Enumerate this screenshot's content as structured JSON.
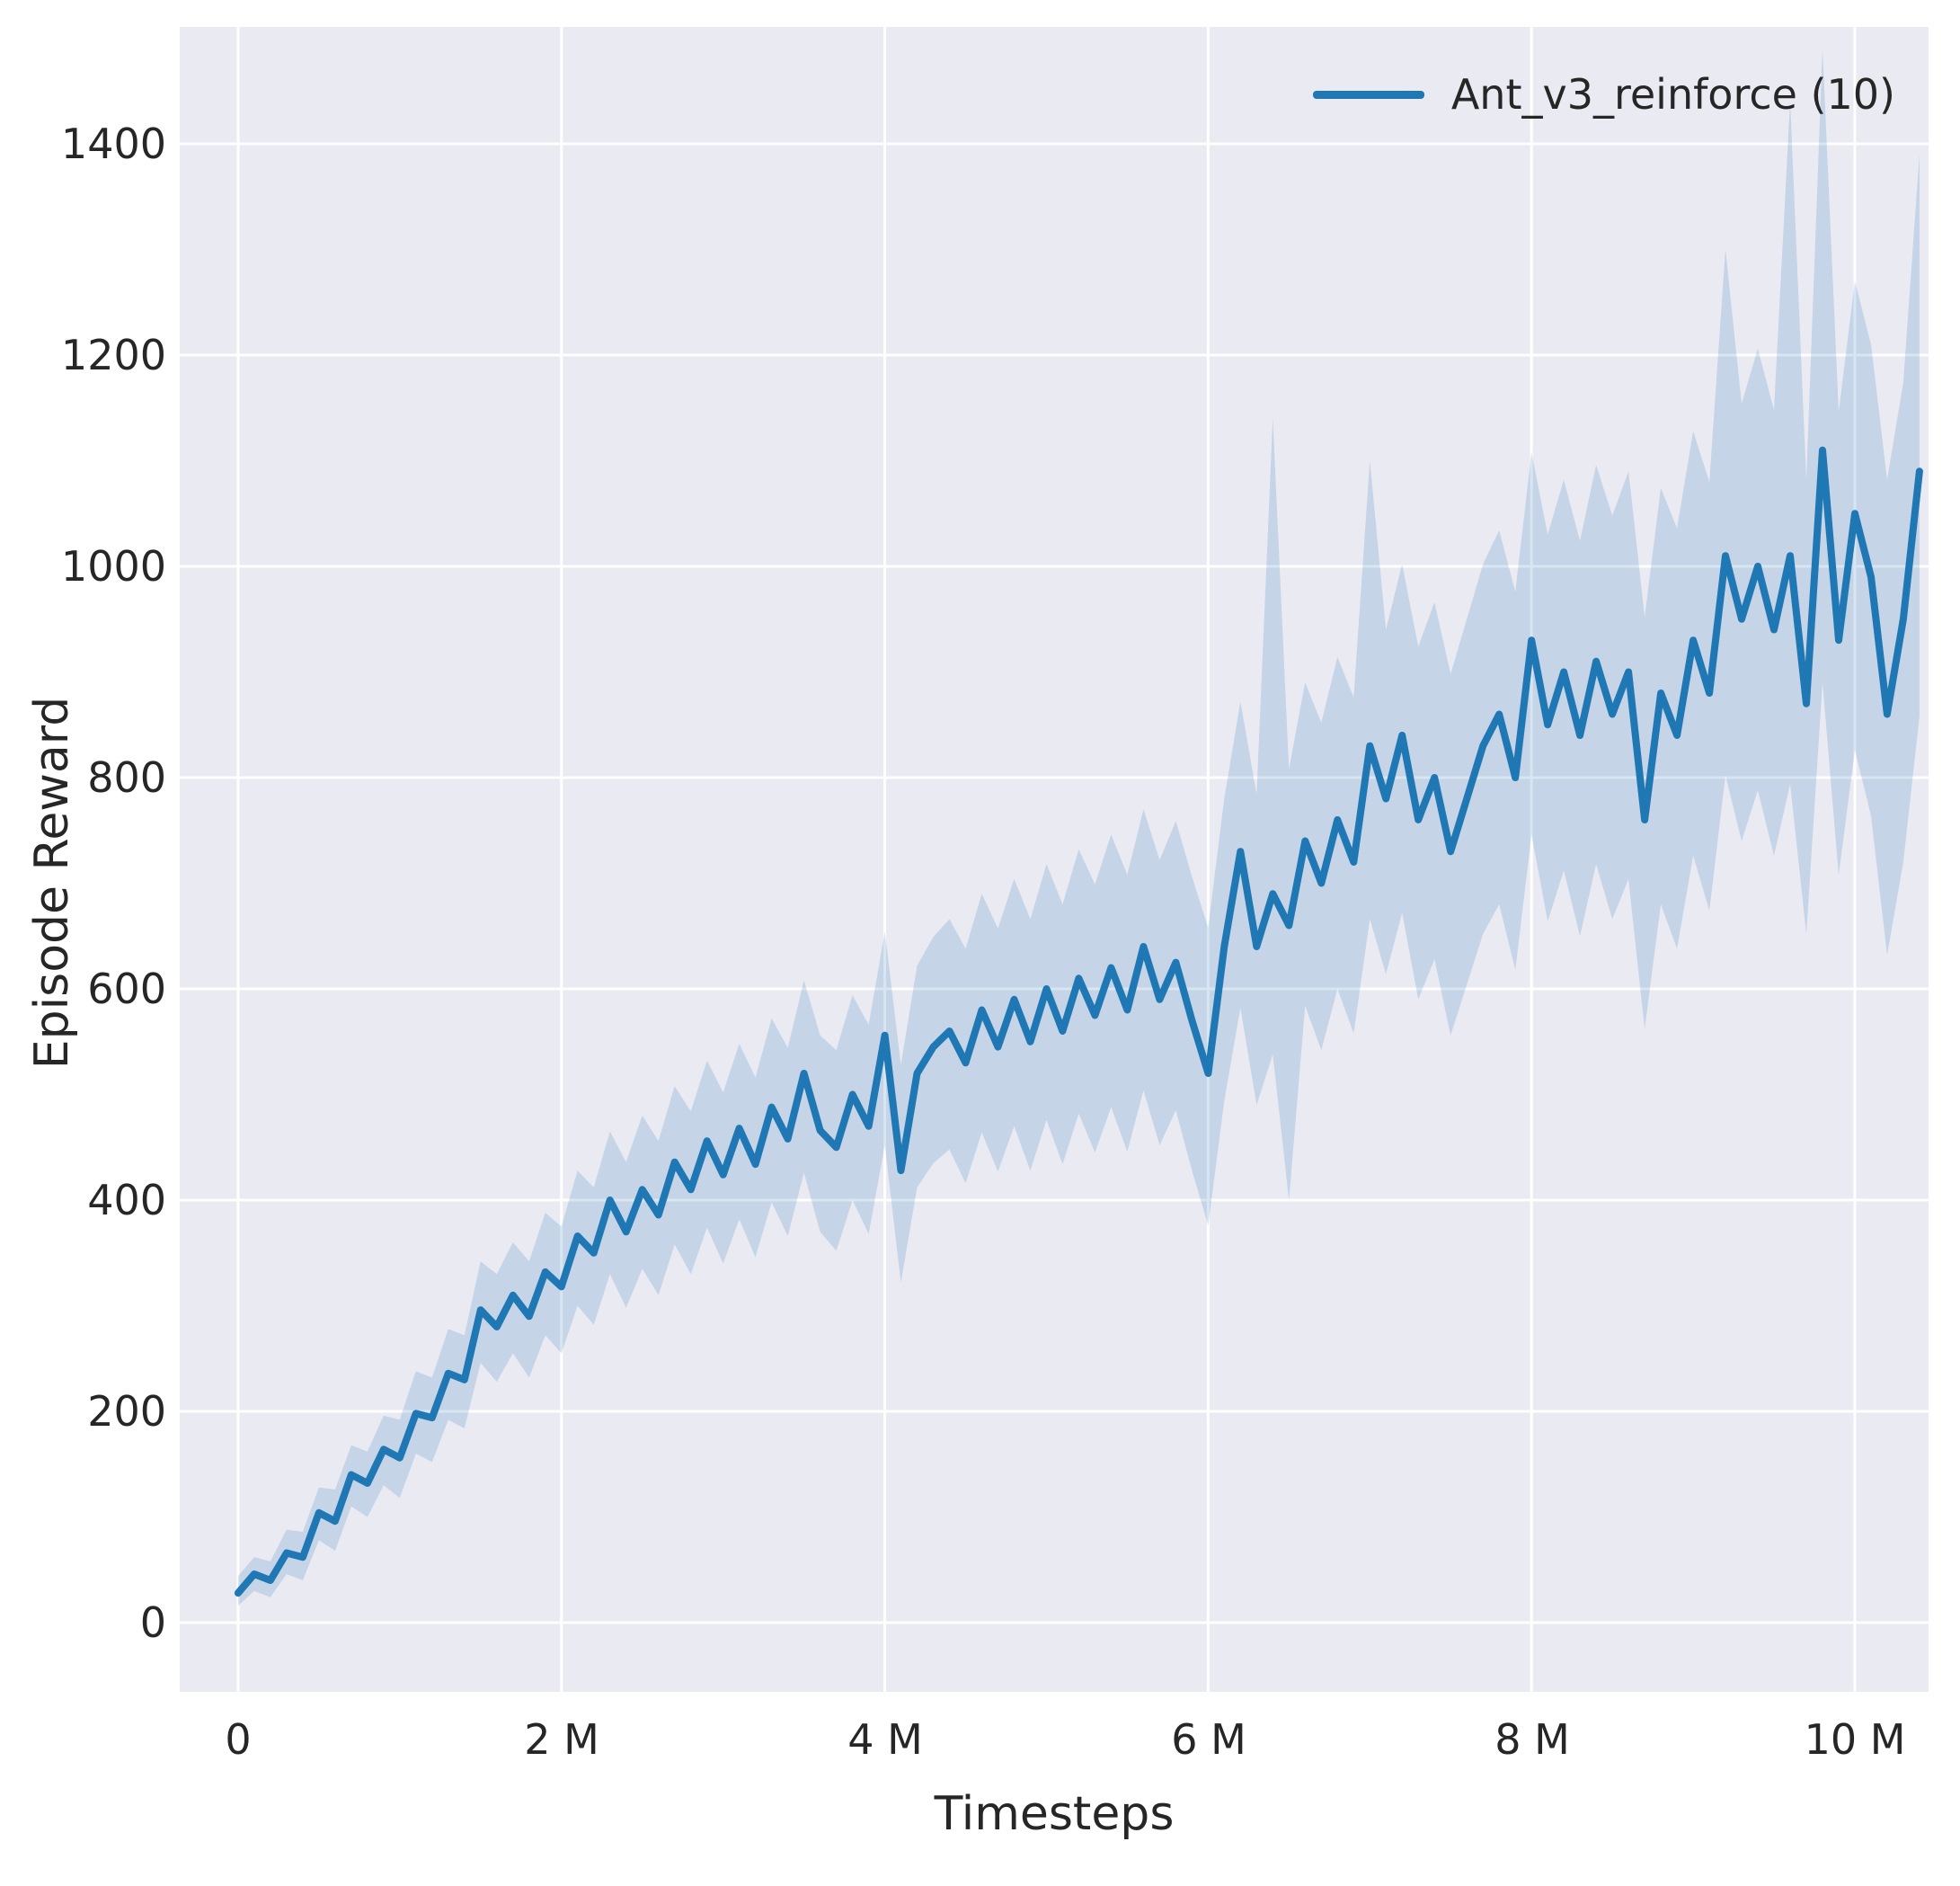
{
  "figure": {
    "background": "#ffffff",
    "plot_background": "#eaeaf2",
    "grid_color": "#ffffff",
    "line_color": "#1f77b4",
    "band_color": "#1f77b4",
    "band_opacity": 0.18,
    "text_color": "#262626"
  },
  "chart_data": {
    "type": "line",
    "title": "",
    "xlabel": "Timesteps",
    "ylabel": "Episode Reward",
    "x_unit": "M",
    "grid": true,
    "legend_position": "upper right",
    "legend": [
      {
        "label": "Ant_v3_reinforce (10)",
        "color": "#1f77b4"
      }
    ],
    "xlim": [
      -0.361,
      10.456
    ],
    "ylim": [
      -65.5,
      1510.6
    ],
    "xticks": {
      "values": [
        0,
        2,
        4,
        6,
        8,
        10
      ],
      "labels": [
        "0",
        "2 M",
        "4 M",
        "6 M",
        "8 M",
        "10 M"
      ]
    },
    "yticks": {
      "values": [
        0,
        200,
        400,
        600,
        800,
        1000,
        1200,
        1400
      ],
      "labels": [
        "0",
        "200",
        "400",
        "600",
        "800",
        "1000",
        "1200",
        "1400"
      ]
    },
    "series": [
      {
        "name": "Ant_v3_reinforce (10)",
        "x": [
          0,
          0.1,
          0.2,
          0.3,
          0.4,
          0.5,
          0.6,
          0.7,
          0.8,
          0.9,
          1.0,
          1.1,
          1.2,
          1.3,
          1.4,
          1.5,
          1.6,
          1.7,
          1.8,
          1.9,
          2.0,
          2.1,
          2.2,
          2.3,
          2.4,
          2.5,
          2.6,
          2.7,
          2.8,
          2.9,
          3.0,
          3.1,
          3.2,
          3.3,
          3.4,
          3.5,
          3.6,
          3.7,
          3.8,
          3.9,
          4.0,
          4.1,
          4.2,
          4.3,
          4.4,
          4.5,
          4.6,
          4.7,
          4.8,
          4.9,
          5.0,
          5.1,
          5.2,
          5.3,
          5.4,
          5.5,
          5.6,
          5.7,
          5.8,
          5.9,
          6.0,
          6.1,
          6.2,
          6.3,
          6.4,
          6.5,
          6.6,
          6.7,
          6.8,
          6.9,
          7.0,
          7.1,
          7.2,
          7.3,
          7.4,
          7.5,
          7.6,
          7.7,
          7.8,
          7.9,
          8.0,
          8.1,
          8.2,
          8.3,
          8.4,
          8.5,
          8.6,
          8.7,
          8.8,
          8.9,
          9.0,
          9.1,
          9.2,
          9.3,
          9.4,
          9.5,
          9.6,
          9.7,
          9.8,
          9.9,
          10.0,
          10.1,
          10.2,
          10.3,
          10.4
        ],
        "mean": [
          28,
          46,
          40,
          66,
          62,
          104,
          96,
          140,
          132,
          164,
          156,
          198,
          194,
          236,
          230,
          296,
          280,
          310,
          290,
          332,
          318,
          366,
          350,
          400,
          370,
          410,
          386,
          436,
          410,
          456,
          424,
          468,
          434,
          488,
          458,
          520,
          466,
          450,
          500,
          470,
          556,
          428,
          520,
          545,
          560,
          530,
          580,
          545,
          590,
          550,
          600,
          560,
          610,
          575,
          620,
          580,
          640,
          590,
          625,
          570,
          520,
          640,
          730,
          640,
          690,
          660,
          740,
          700,
          760,
          720,
          830,
          780,
          840,
          760,
          800,
          730,
          780,
          830,
          860,
          800,
          930,
          850,
          900,
          840,
          910,
          860,
          900,
          760,
          880,
          840,
          930,
          880,
          1010,
          950,
          1000,
          940,
          1010,
          870,
          1110,
          930,
          1050,
          990,
          860,
          950,
          1090
        ],
        "lower": [
          16,
          30,
          24,
          46,
          40,
          78,
          68,
          110,
          100,
          130,
          118,
          160,
          152,
          192,
          184,
          246,
          228,
          255,
          232,
          272,
          255,
          300,
          282,
          330,
          298,
          335,
          310,
          358,
          330,
          374,
          340,
          382,
          346,
          398,
          366,
          426,
          370,
          352,
          400,
          368,
          452,
          322,
          412,
          435,
          448,
          416,
          464,
          427,
          470,
          428,
          476,
          434,
          482,
          445,
          488,
          446,
          504,
          452,
          485,
          428,
          376,
          494,
          582,
          490,
          538,
          400,
          584,
          542,
          600,
          558,
          666,
          614,
          672,
          590,
          628,
          556,
          604,
          652,
          680,
          618,
          746,
          664,
          712,
          650,
          718,
          666,
          704,
          562,
          680,
          638,
          726,
          674,
          802,
          740,
          788,
          726,
          794,
          652,
          890,
          708,
          826,
          764,
          632,
          720,
          858
        ],
        "upper": [
          44,
          62,
          58,
          88,
          86,
          128,
          126,
          168,
          162,
          196,
          192,
          238,
          232,
          278,
          272,
          342,
          330,
          360,
          342,
          388,
          375,
          428,
          412,
          465,
          436,
          480,
          456,
          508,
          484,
          532,
          502,
          548,
          516,
          572,
          544,
          608,
          556,
          542,
          594,
          566,
          654,
          528,
          622,
          649,
          666,
          638,
          690,
          657,
          704,
          666,
          718,
          680,
          732,
          699,
          746,
          708,
          770,
          722,
          759,
          706,
          658,
          780,
          872,
          784,
          1140,
          808,
          890,
          852,
          914,
          876,
          1100,
          940,
          1002,
          924,
          966,
          898,
          950,
          1002,
          1034,
          976,
          1108,
          1030,
          1082,
          1024,
          1096,
          1048,
          1090,
          952,
          1074,
          1036,
          1128,
          1080,
          1300,
          1154,
          1206,
          1148,
          1440,
          1082,
          1490,
          1146,
          1270,
          1210,
          1082,
          1174,
          1390
        ]
      }
    ]
  }
}
